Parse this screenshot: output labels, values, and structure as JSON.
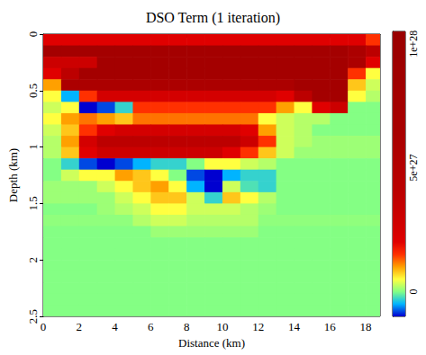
{
  "chart_data": {
    "type": "heatmap",
    "title": "DSO Term (1 iteration)",
    "x_label": "Distance (km)",
    "y_label": "Depth (km)",
    "xlim": [
      0,
      18.8
    ],
    "xticks": [
      0,
      2,
      4,
      6,
      8,
      10,
      12,
      14,
      16,
      18
    ],
    "ylim": [
      2.5,
      0
    ],
    "yticks": [
      0,
      0.5,
      1,
      1.5,
      2,
      2.5
    ],
    "grid": false,
    "x_edges": [
      0,
      1,
      2,
      3,
      4,
      5,
      6,
      7,
      8,
      9,
      10,
      11,
      12,
      13,
      14,
      15,
      16,
      17,
      18,
      18.8
    ],
    "y_edges": [
      0,
      0.1,
      0.2,
      0.3,
      0.4,
      0.5,
      0.6,
      0.7,
      0.8,
      0.9,
      1,
      1.1,
      1.2,
      1.3,
      1.4,
      1.5,
      1.6,
      1.7,
      1.8,
      1.9,
      2,
      2.1,
      2.2,
      2.3,
      2.4,
      2.5
    ],
    "values": [
      [
        2e+27,
        2e+27,
        2e+27,
        2e+27,
        2e+27,
        2e+27,
        2e+27,
        2e+27,
        2e+27,
        2e+27,
        2e+27,
        2e+27,
        2e+27,
        2e+27,
        2e+27,
        2e+27,
        2e+27,
        2e+27,
        1.5e+27
      ],
      [
        8e+27,
        8e+27,
        8e+27,
        8e+27,
        8e+27,
        8e+27,
        8e+27,
        8e+27,
        8e+27,
        8e+27,
        8e+27,
        8e+27,
        8e+27,
        8e+27,
        8e+27,
        8e+27,
        8e+27,
        6e+27,
        4e+27
      ],
      [
        3e+27,
        3e+27,
        3e+27,
        8e+27,
        8e+27,
        8e+27,
        8e+27,
        8e+27,
        8e+27,
        8e+27,
        8e+27,
        8e+27,
        8e+27,
        8e+27,
        8e+27,
        8e+27,
        8e+27,
        6e+27,
        2e+27
      ],
      [
        2e+27,
        4e+27,
        8e+27,
        8e+27,
        8e+27,
        8e+27,
        8e+27,
        8e+27,
        8e+27,
        8e+27,
        8e+27,
        8e+27,
        8e+27,
        8e+27,
        8e+27,
        8e+27,
        8e+27,
        1.5e+27,
        5e+26
      ],
      [
        1e+27,
        6e+27,
        6e+27,
        6e+27,
        6e+27,
        6e+27,
        6e+27,
        6e+27,
        6e+27,
        6e+27,
        6e+27,
        6e+27,
        6e+27,
        6e+27,
        8e+27,
        8e+27,
        8e+27,
        8e+26,
        3e+26
      ],
      [
        5e+26,
        -5e+26,
        1.5e+27,
        2.5e+27,
        2.5e+27,
        2.5e+27,
        2.5e+27,
        2.5e+27,
        2.5e+27,
        2.5e+27,
        2.5e+27,
        2.5e+27,
        2.5e+27,
        2e+27,
        4e+27,
        8e+27,
        8e+27,
        5e+26,
        2e+26
      ],
      [
        3e+26,
        5e+26,
        -1e+27,
        -8e+26,
        -3e+26,
        1.5e+27,
        1.5e+27,
        1.5e+27,
        1.5e+27,
        1.5e+27,
        1.5e+27,
        1.5e+27,
        1.5e+27,
        1e+27,
        5e+26,
        2e+27,
        3e+27,
        0,
        0
      ],
      [
        5e+26,
        1e+27,
        1.2e+27,
        1e+27,
        8e+26,
        1.2e+27,
        1.2e+27,
        1.2e+27,
        1.2e+27,
        1.2e+27,
        1.2e+27,
        1.2e+27,
        5e+26,
        3e+26,
        2e+26,
        2e+26,
        0,
        0,
        0
      ],
      [
        3e+26,
        8e+26,
        1.5e+27,
        2e+27,
        2.5e+27,
        2.5e+27,
        2.5e+27,
        2.5e+27,
        2.5e+27,
        2.5e+27,
        2.5e+27,
        2e+27,
        1e+27,
        3e+26,
        2e+26,
        0,
        0,
        0,
        0
      ],
      [
        2e+26,
        1e+27,
        2.5e+27,
        4e+27,
        4e+27,
        4e+27,
        4e+27,
        4e+27,
        4e+27,
        4e+27,
        4e+27,
        3e+27,
        1.5e+27,
        3e+26,
        2e+26,
        1e+26,
        1e+26,
        1e+26,
        1e+26
      ],
      [
        2e+26,
        8e+26,
        2e+27,
        3e+27,
        3e+27,
        3e+27,
        3e+27,
        3e+27,
        3e+27,
        3e+27,
        2e+27,
        1.5e+27,
        8e+26,
        3e+26,
        1e+26,
        1e+26,
        1e+26,
        1e+26,
        1e+26
      ],
      [
        0,
        -3e+26,
        -8e+26,
        -1e+27,
        -8e+26,
        -5e+26,
        -3e+26,
        -3e+26,
        0,
        5e+26,
        5e+26,
        3e+26,
        2e+26,
        0,
        0,
        0,
        0,
        0,
        0
      ],
      [
        0,
        3e+26,
        5e+26,
        5e+26,
        1e+27,
        8e+26,
        5e+26,
        0,
        -8e+26,
        -1e+27,
        -5e+26,
        -3e+26,
        -3e+26,
        0,
        0,
        0,
        0,
        0,
        0
      ],
      [
        1e+26,
        1e+26,
        1e+26,
        3e+26,
        5e+26,
        8e+26,
        1e+27,
        5e+26,
        -5e+26,
        -1e+27,
        3e+26,
        -2e+26,
        -3e+26,
        0,
        0,
        0,
        0,
        0,
        0
      ],
      [
        1e+26,
        1e+26,
        1e+26,
        1e+26,
        3e+26,
        5e+26,
        8e+26,
        8e+26,
        3e+26,
        -3e+26,
        8e+26,
        5e+26,
        2e+26,
        0,
        0,
        0,
        0,
        0,
        0
      ],
      [
        0,
        0,
        0,
        1e+26,
        2e+26,
        3e+26,
        5e+26,
        5e+26,
        3e+26,
        3e+26,
        3e+26,
        2e+26,
        1e+26,
        0,
        0,
        0,
        0,
        0,
        0
      ],
      [
        5e+25,
        5e+25,
        5e+25,
        5e+25,
        5e+25,
        2e+26,
        3e+26,
        3e+26,
        2e+26,
        2e+26,
        2e+26,
        2e+26,
        5e+25,
        5e+25,
        5e+25,
        5e+25,
        5e+25,
        5e+25,
        5e+25
      ],
      [
        0,
        0,
        0,
        0,
        0,
        0,
        1e+26,
        1e+26,
        1e+26,
        1e+26,
        1e+26,
        1e+26,
        0,
        0,
        0,
        0,
        0,
        0,
        0
      ],
      [
        0,
        0,
        0,
        0,
        0,
        0,
        0,
        0,
        0,
        0,
        0,
        0,
        0,
        0,
        0,
        0,
        0,
        0,
        0
      ],
      [
        0,
        0,
        0,
        0,
        0,
        0,
        0,
        0,
        0,
        0,
        0,
        0,
        0,
        0,
        0,
        0,
        0,
        0,
        0
      ],
      [
        0,
        0,
        0,
        0,
        0,
        0,
        0,
        0,
        0,
        0,
        0,
        0,
        0,
        0,
        0,
        0,
        0,
        0,
        0
      ],
      [
        0,
        0,
        0,
        0,
        0,
        0,
        0,
        0,
        0,
        0,
        0,
        0,
        0,
        0,
        0,
        0,
        0,
        0,
        0
      ],
      [
        0,
        0,
        0,
        0,
        0,
        0,
        0,
        0,
        0,
        0,
        0,
        0,
        0,
        0,
        0,
        0,
        0,
        0,
        0
      ],
      [
        0,
        0,
        0,
        0,
        0,
        0,
        0,
        0,
        0,
        0,
        0,
        0,
        0,
        0,
        0,
        0,
        0,
        0,
        0
      ],
      [
        0,
        0,
        0,
        0,
        0,
        0,
        0,
        0,
        0,
        0,
        0,
        0,
        0,
        0,
        0,
        0,
        0,
        0,
        0
      ]
    ],
    "colorbar": {
      "range": [
        -1e+27,
        1.05e+28
      ],
      "ticks": [
        0,
        {
          "value": 5e+27,
          "label": "5e+27"
        },
        {
          "value": 1e+28,
          "label": "1e+28"
        }
      ]
    }
  }
}
